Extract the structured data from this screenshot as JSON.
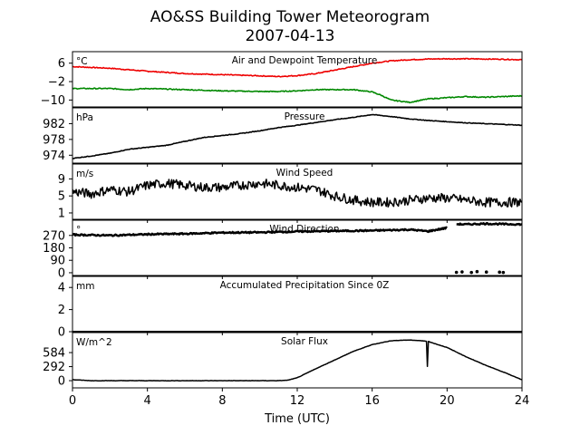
{
  "title_line1": "AO&SS Building Tower Meteorogram",
  "title_line2": "2007-04-13",
  "chart_data": {
    "type": "line",
    "xlabel": "Time (UTC)",
    "xlim": [
      0,
      24
    ],
    "xticks": [
      0,
      4,
      8,
      12,
      16,
      20,
      24
    ],
    "panels": [
      {
        "id": "temp",
        "title": "Air and Dewpoint Temperature",
        "unit": "°C",
        "ylim": [
          -13,
          11
        ],
        "yticks": [
          6,
          -2,
          -10
        ],
        "ytick_labels": [
          "6",
          "−2",
          "−10"
        ],
        "series": [
          {
            "color": "#ee0000",
            "x": [
              0,
              2,
              4,
              6,
              8,
              10,
              11,
              12,
              13,
              14,
              15,
              16,
              17,
              18,
              19,
              20,
              21,
              22,
              23,
              24
            ],
            "y": [
              4.5,
              3.8,
              2.5,
              1.5,
              1,
              0.5,
              0.2,
              0.6,
              1.5,
              3,
              4.5,
              6,
              7,
              7.5,
              7.8,
              7.9,
              7.9,
              7.8,
              7.7,
              7.5
            ]
          },
          {
            "color": "#008800",
            "x": [
              0,
              2,
              3,
              4,
              6,
              8,
              10,
              11,
              12,
              13,
              14,
              15,
              16,
              16.5,
              17,
              18,
              19,
              20,
              21,
              22,
              23,
              24
            ],
            "y": [
              -5,
              -5,
              -5.5,
              -5,
              -5.5,
              -6,
              -6.3,
              -6.3,
              -6,
              -5.5,
              -5.5,
              -5.5,
              -6.5,
              -8,
              -10,
              -11,
              -9.5,
              -9,
              -8.5,
              -8.8,
              -8.5,
              -8.2
            ]
          }
        ]
      },
      {
        "id": "pressure",
        "title": "Pressure",
        "unit": "hPa",
        "ylim": [
          972,
          986
        ],
        "yticks": [
          982,
          978,
          974
        ],
        "ytick_labels": [
          "982",
          "978",
          "974"
        ],
        "series": [
          {
            "color": "#000000",
            "x": [
              0,
              1,
              2,
              3,
              4,
              5,
              6,
              7,
              8,
              9,
              10,
              11,
              12,
              13,
              14,
              15,
              16,
              17,
              18,
              19,
              20,
              21,
              22,
              23,
              24
            ],
            "y": [
              973.2,
              973.8,
              974.5,
              975.5,
              976,
              976.5,
              977.5,
              978.5,
              979,
              979.5,
              980.2,
              981,
              981.6,
              982.3,
              983,
              983.6,
              984.3,
              983.8,
              983.2,
              982.8,
              982.5,
              982.2,
              982,
              981.8,
              981.6
            ]
          }
        ]
      },
      {
        "id": "wind-speed",
        "title": "Wind Speed",
        "unit": "m/s",
        "ylim": [
          -0.5,
          12.5
        ],
        "yticks": [
          9,
          5,
          1
        ],
        "ytick_labels": [
          "9",
          "5",
          "1"
        ],
        "series": [
          {
            "color": "#000000",
            "x": [
              0,
              1,
              2,
              3,
              4,
              5,
              6,
              7,
              8,
              9,
              10,
              11,
              12,
              13,
              14,
              15,
              16,
              17,
              18,
              19,
              20,
              21,
              22,
              23,
              24
            ],
            "y": [
              6,
              5.5,
              6.5,
              6,
              7.5,
              8,
              7.5,
              7,
              7,
              7.5,
              8,
              7.5,
              7,
              6.5,
              5,
              4,
              3.5,
              3.5,
              4,
              4.5,
              4.5,
              4,
              3.5,
              3.5,
              3.5
            ]
          }
        ]
      },
      {
        "id": "wind-direction",
        "title": "Wind Direction",
        "unit": "°",
        "ylim": [
          -20,
          380
        ],
        "yticks": [
          270,
          180,
          90,
          0
        ],
        "ytick_labels": [
          "270",
          "180",
          "90",
          "0"
        ],
        "series": [
          {
            "color": "#000000",
            "x": [
              0,
              2,
              4,
              6,
              8,
              10,
              12,
              14,
              16,
              18,
              19,
              20
            ],
            "y": [
              275,
              270,
              278,
              282,
              290,
              292,
              298,
              302,
              305,
              312,
              300,
              325
            ]
          },
          {
            "color": "#000000",
            "x": [
              20.5,
              21,
              22,
              23,
              24
            ],
            "y": [
              352,
              350,
              355,
              352,
              350
            ]
          }
        ],
        "scatter": {
          "color": "#000000",
          "x": [
            20.5,
            20.8,
            21.3,
            21.6,
            22.1,
            22.8,
            23.0
          ],
          "y": [
            3,
            6,
            2,
            8,
            5,
            4,
            2
          ]
        }
      },
      {
        "id": "precip",
        "title": "Accumulated Precipitation Since 0Z",
        "unit": "mm",
        "ylim": [
          0,
          5
        ],
        "yticks": [
          4,
          2,
          0
        ],
        "ytick_labels": [
          "4",
          "2",
          "0"
        ],
        "series": [
          {
            "color": "#000000",
            "x": [
              0,
              24
            ],
            "y": [
              0,
              0
            ]
          }
        ]
      },
      {
        "id": "solar",
        "title": "Solar Flux",
        "unit": "W/m^2",
        "ylim": [
          -150,
          1000
        ],
        "yticks": [
          584,
          292,
          0
        ],
        "ytick_labels": [
          "584",
          "292",
          "0"
        ],
        "series": [
          {
            "color": "#000000",
            "x": [
              0,
              1,
              2,
              4,
              6,
              8,
              10,
              11,
              11.5,
              12,
              13,
              14,
              15,
              16,
              17,
              17.5,
              18,
              18.5,
              18.9,
              18.95,
              19.0,
              19.05,
              19.1,
              20,
              21,
              22,
              23,
              24
            ],
            "y": [
              20,
              0,
              0,
              0,
              0,
              0,
              0,
              0,
              10,
              60,
              250,
              430,
              610,
              750,
              830,
              840,
              845,
              835,
              820,
              300,
              820,
              810,
              800,
              690,
              500,
              330,
              180,
              20
            ]
          }
        ]
      }
    ]
  }
}
